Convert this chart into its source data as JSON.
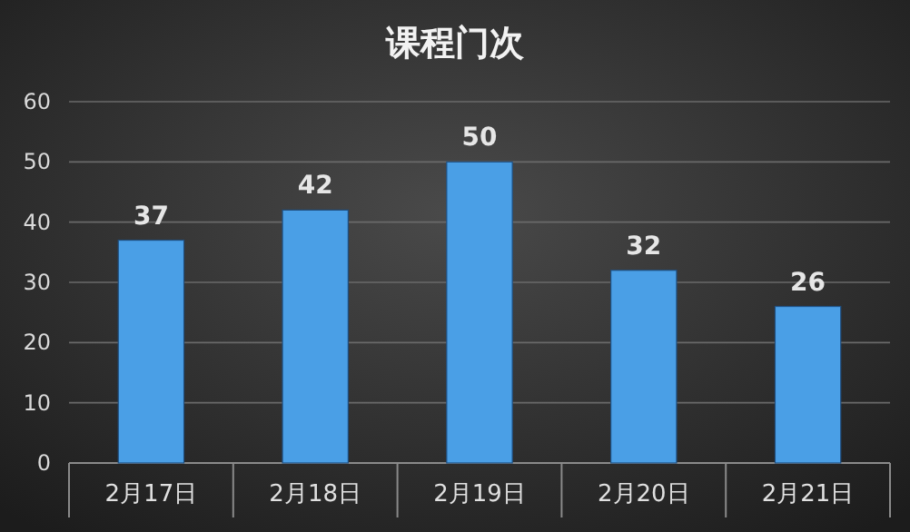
{
  "chart_data": {
    "type": "bar",
    "title": "课程门次",
    "categories": [
      "2月17日",
      "2月18日",
      "2月19日",
      "2月20日",
      "2月21日"
    ],
    "values": [
      37,
      42,
      50,
      32,
      26
    ],
    "color": "#4a9fe6",
    "ylim": [
      0,
      60
    ],
    "yticks": [
      0,
      10,
      20,
      30,
      40,
      50,
      60
    ],
    "grid": "y",
    "data_labels": true
  }
}
